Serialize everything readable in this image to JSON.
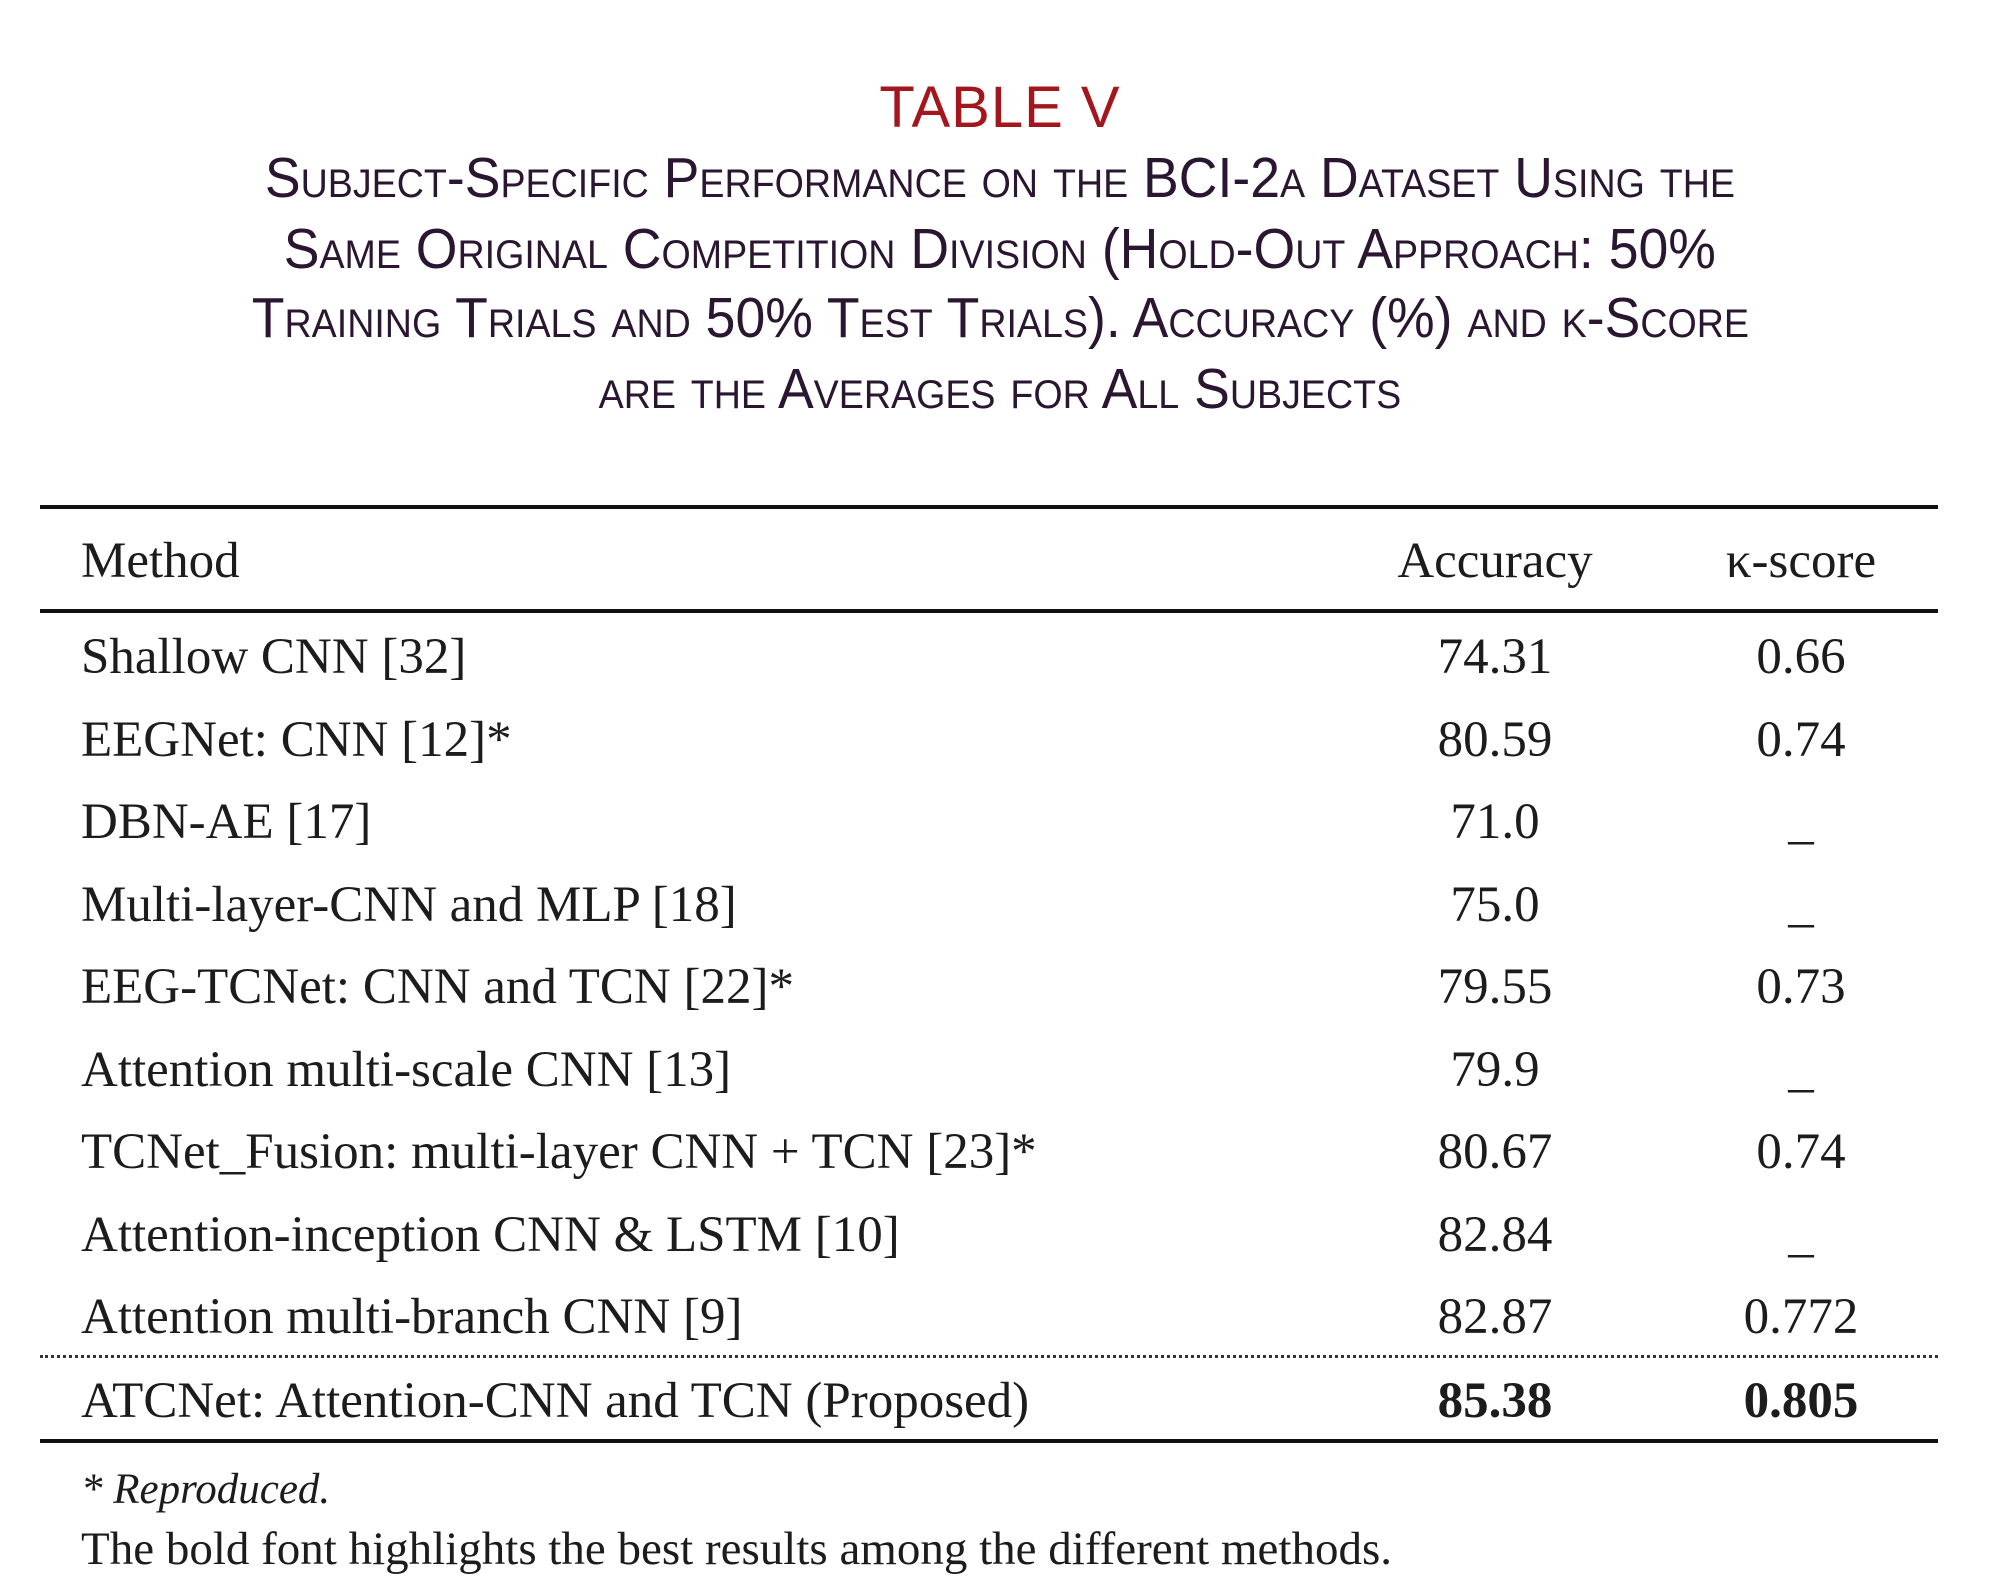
{
  "table_label": "TABLE V",
  "caption_lines": [
    "Subject-Specific Performance on the BCI-2a Dataset Using the",
    "Same Original Competition Division (Hold-Out Approach: 50%",
    "Training Trials and 50% Test Trials). Accuracy (%) and κ-Score",
    "are the Averages for All Subjects"
  ],
  "columns": [
    "Method",
    "Accuracy",
    "κ-score"
  ],
  "rows": [
    {
      "method": "Shallow CNN [32]",
      "accuracy": "74.31",
      "kappa": "0.66"
    },
    {
      "method": "EEGNet: CNN [12]*",
      "accuracy": "80.59",
      "kappa": "0.74"
    },
    {
      "method": "DBN-AE [17]",
      "accuracy": "71.0",
      "kappa": "_"
    },
    {
      "method": "Multi-layer-CNN and MLP [18]",
      "accuracy": "75.0",
      "kappa": "_"
    },
    {
      "method": "EEG-TCNet: CNN and TCN [22]*",
      "accuracy": "79.55",
      "kappa": "0.73"
    },
    {
      "method": "Attention multi-scale CNN [13]",
      "accuracy": "79.9",
      "kappa": "_"
    },
    {
      "method": "TCNet_Fusion: multi-layer CNN + TCN [23]*",
      "accuracy": "80.67",
      "kappa": "0.74"
    },
    {
      "method": "Attention-inception CNN & LSTM [10]",
      "accuracy": "82.84",
      "kappa": "_"
    },
    {
      "method": "Attention multi-branch CNN [9]",
      "accuracy": "82.87",
      "kappa": "0.772"
    }
  ],
  "proposed": {
    "method": "ATCNet: Attention-CNN and TCN (Proposed)",
    "accuracy": "85.38",
    "kappa": "0.805"
  },
  "footnotes": {
    "reproduced": "* Reproduced.",
    "bold_note": "The bold font highlights the best results among the different methods."
  },
  "colors": {
    "label": "#a3161d",
    "caption": "#2a1630"
  }
}
